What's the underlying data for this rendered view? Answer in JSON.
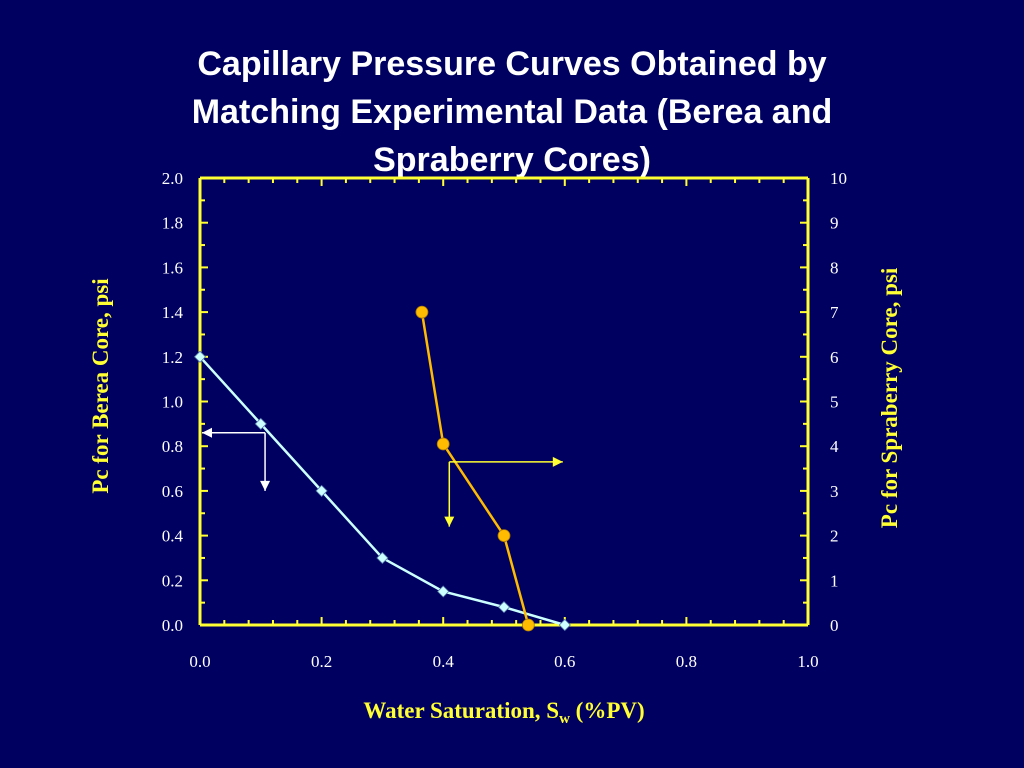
{
  "slide": {
    "title_lines": [
      "Capillary Pressure Curves Obtained by",
      "Matching Experimental Data (Berea and",
      "Spraberry Cores)"
    ]
  },
  "chart_data": {
    "type": "line",
    "title": "Capillary Pressure Curves Obtained by Matching Experimental Data (Berea and Spraberry Cores)",
    "xlabel_main": "Water Saturation, S",
    "xlabel_sub": "w",
    "xlabel_tail": " (%PV)",
    "ylabel_left": "Pc for Berea Core, psi",
    "ylabel_right": "Pc for Spraberry Core, psi",
    "xlim": [
      0,
      1.0
    ],
    "ylim_left": [
      0,
      2.0
    ],
    "ylim_right": [
      0,
      10
    ],
    "x_ticks": [
      "0.0",
      "0.2",
      "0.4",
      "0.6",
      "0.8",
      "1.0"
    ],
    "y_left_ticks": [
      "0.0",
      "0.2",
      "0.4",
      "0.6",
      "0.8",
      "1.0",
      "1.2",
      "1.4",
      "1.6",
      "1.8",
      "2.0"
    ],
    "y_right_ticks": [
      "0",
      "1",
      "2",
      "3",
      "4",
      "5",
      "6",
      "7",
      "8",
      "9",
      "10"
    ],
    "grid": false,
    "colors": {
      "axis": "#ffff33",
      "berea": "#ccffff",
      "spraberry": "#ffbb00",
      "arrow": "#ffffff",
      "arrow_right": "#ffff33"
    },
    "series": [
      {
        "axis": "left",
        "marker": "diamond",
        "x": [
          0.0,
          0.1,
          0.2,
          0.3,
          0.4,
          0.5,
          0.6
        ],
        "y": [
          1.2,
          0.9,
          0.6,
          0.3,
          0.15,
          0.08,
          0.0
        ]
      },
      {
        "axis": "right",
        "marker": "circle",
        "x": [
          0.365,
          0.4,
          0.5,
          0.54
        ],
        "y": [
          7.0,
          4.05,
          2.0,
          0.0
        ]
      }
    ],
    "annotations": [
      {
        "type": "axis-pointer",
        "direction": "left",
        "color_key": "arrow",
        "from": [
          0.107,
          0.86
        ],
        "to": [
          0.0,
          0.86
        ],
        "drop_to": 0.6,
        "axis": "left"
      },
      {
        "type": "axis-pointer",
        "direction": "right",
        "color_key": "arrow_right",
        "from": [
          0.41,
          3.65
        ],
        "to": [
          0.6,
          3.65
        ],
        "drop_to": 2.2,
        "axis": "right"
      }
    ]
  }
}
